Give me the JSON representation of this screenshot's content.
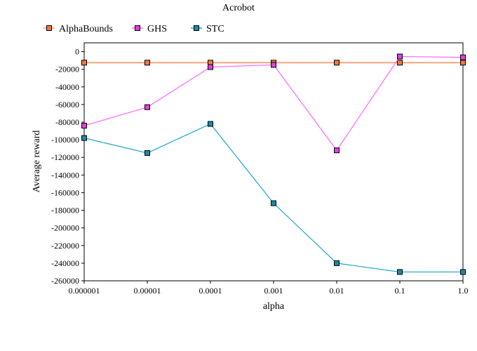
{
  "chart_data": {
    "type": "line",
    "title": "Acrobot",
    "xlabel": "alpha",
    "ylabel": "Average reward",
    "categories": [
      "0.000001",
      "0.00001",
      "0.0001",
      "0.001",
      "0.01",
      "0.1",
      "1.0"
    ],
    "ylim": [
      -260000,
      10000
    ],
    "yticks": [
      0,
      -20000,
      -40000,
      -60000,
      -80000,
      -100000,
      -120000,
      -140000,
      -160000,
      -180000,
      -200000,
      -220000,
      -240000,
      -260000
    ],
    "legend_position": "top",
    "grid": false,
    "series": [
      {
        "name": "AlphaBounds",
        "color": "#f4a582",
        "marker_color": "#f07840",
        "values": [
          -12500,
          -12500,
          -12500,
          -12500,
          -12500,
          -12500,
          -12500
        ]
      },
      {
        "name": "GHS",
        "color": "#ff66ff",
        "marker_color": "#e040e0",
        "values": [
          -84000,
          -63000,
          -17500,
          -15000,
          -112000,
          -5500,
          -6500
        ]
      },
      {
        "name": "STC",
        "color": "#1aa7c4",
        "marker_color": "#1e88a8",
        "values": [
          -98000,
          -115000,
          -82000,
          -172000,
          -240000,
          -250000,
          -250000
        ]
      }
    ]
  }
}
